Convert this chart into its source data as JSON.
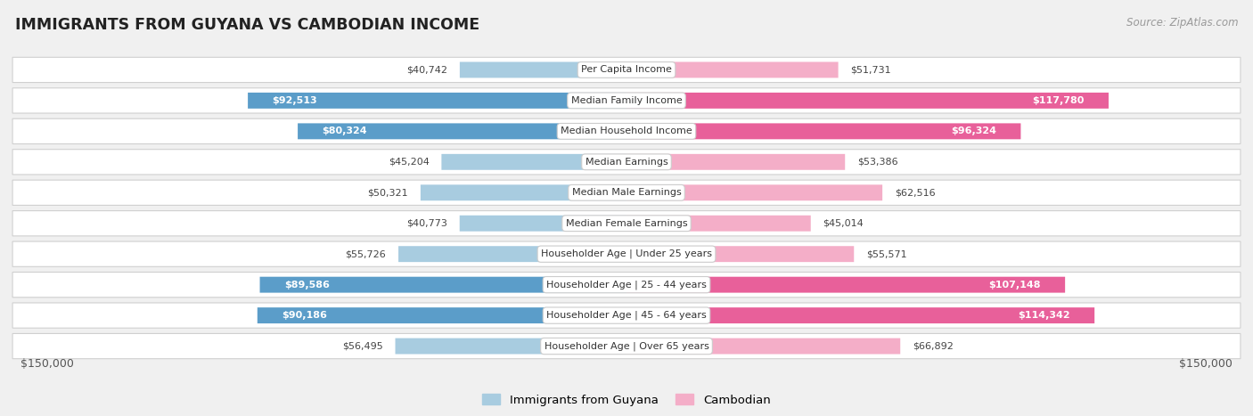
{
  "title": "IMMIGRANTS FROM GUYANA VS CAMBODIAN INCOME",
  "source": "Source: ZipAtlas.com",
  "categories": [
    "Per Capita Income",
    "Median Family Income",
    "Median Household Income",
    "Median Earnings",
    "Median Male Earnings",
    "Median Female Earnings",
    "Householder Age | Under 25 years",
    "Householder Age | 25 - 44 years",
    "Householder Age | 45 - 64 years",
    "Householder Age | Over 65 years"
  ],
  "guyana_values": [
    40742,
    92513,
    80324,
    45204,
    50321,
    40773,
    55726,
    89586,
    90186,
    56495
  ],
  "cambodian_values": [
    51731,
    117780,
    96324,
    53386,
    62516,
    45014,
    55571,
    107148,
    114342,
    66892
  ],
  "guyana_labels": [
    "$40,742",
    "$92,513",
    "$80,324",
    "$45,204",
    "$50,321",
    "$40,773",
    "$55,726",
    "$89,586",
    "$90,186",
    "$56,495"
  ],
  "cambodian_labels": [
    "$51,731",
    "$117,780",
    "$96,324",
    "$53,386",
    "$62,516",
    "$45,014",
    "$55,571",
    "$107,148",
    "$114,342",
    "$66,892"
  ],
  "guyana_color_light": "#a8cce0",
  "guyana_color_dark": "#5b9dc9",
  "cambodian_color_light": "#f4aec8",
  "cambodian_color_dark": "#e8609a",
  "guyana_threshold": 75000,
  "cambodian_threshold": 75000,
  "max_value": 150000,
  "xlabel_left": "$150,000",
  "xlabel_right": "$150,000",
  "background_color": "#f0f0f0",
  "row_bg": "#ffffff",
  "row_border": "#d0d0d0",
  "legend_guyana": "Immigrants from Guyana",
  "legend_cambodian": "Cambodian"
}
